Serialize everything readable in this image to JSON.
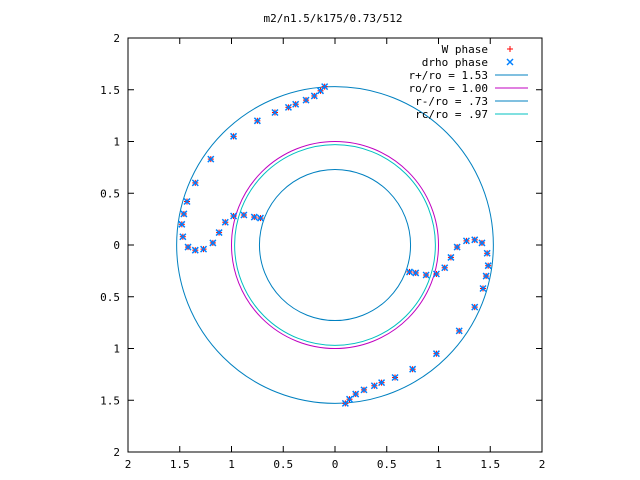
{
  "chart_data": {
    "type": "scatter",
    "title": "m2/n1.5/k175/0.73/512",
    "xlim": [
      -2,
      2
    ],
    "ylim": [
      -2,
      2
    ],
    "x_ticks": [
      {
        "value": -2,
        "label": "2"
      },
      {
        "value": -1.5,
        "label": "1.5"
      },
      {
        "value": -1,
        "label": "1"
      },
      {
        "value": -0.5,
        "label": "0.5"
      },
      {
        "value": 0,
        "label": "0"
      },
      {
        "value": 0.5,
        "label": "0.5"
      },
      {
        "value": 1,
        "label": "1"
      },
      {
        "value": 1.5,
        "label": "1.5"
      },
      {
        "value": 2,
        "label": "2"
      }
    ],
    "y_ticks": [
      {
        "value": 2,
        "label": "2"
      },
      {
        "value": 1.5,
        "label": "1.5"
      },
      {
        "value": 1,
        "label": "1"
      },
      {
        "value": 0.5,
        "label": "0.5"
      },
      {
        "value": 0,
        "label": "0"
      },
      {
        "value": -0.5,
        "label": "0.5"
      },
      {
        "value": -1,
        "label": "1"
      },
      {
        "value": -1.5,
        "label": "1.5"
      },
      {
        "value": -2,
        "label": "2"
      }
    ],
    "grid": false,
    "legend_position": "top-right",
    "series": [
      {
        "name": "W phase",
        "kind": "points",
        "marker": "plus",
        "color": "#ff0000"
      },
      {
        "name": "drho phase",
        "kind": "points",
        "marker": "cross",
        "color": "#0080ff"
      },
      {
        "name": "r+/ro = 1.53",
        "kind": "circle",
        "radius": 1.53,
        "color": "#0080c0"
      },
      {
        "name": "ro/ro = 1.00",
        "kind": "circle",
        "radius": 1.0,
        "color": "#c000c0"
      },
      {
        "name": "r-/ro = .73",
        "kind": "circle",
        "radius": 0.73,
        "color": "#0080c0"
      },
      {
        "name": "rc/ro = .97",
        "kind": "circle",
        "radius": 0.97,
        "color": "#00c0c0"
      }
    ],
    "phase_points_upper": [
      [
        -0.1,
        1.53
      ],
      [
        -0.14,
        1.49
      ],
      [
        -0.2,
        1.44
      ],
      [
        -0.28,
        1.4
      ],
      [
        -0.38,
        1.36
      ],
      [
        -0.45,
        1.33
      ],
      [
        -0.58,
        1.28
      ],
      [
        -0.75,
        1.2
      ],
      [
        -0.98,
        1.05
      ],
      [
        -1.2,
        0.83
      ],
      [
        -1.35,
        0.6
      ],
      [
        -1.43,
        0.42
      ],
      [
        -1.46,
        0.3
      ],
      [
        -1.48,
        0.2
      ],
      [
        -1.47,
        0.08
      ],
      [
        -1.42,
        -0.02
      ],
      [
        -1.35,
        -0.05
      ],
      [
        -1.27,
        -0.04
      ],
      [
        -1.18,
        0.02
      ],
      [
        -1.12,
        0.12
      ],
      [
        -1.06,
        0.22
      ],
      [
        -0.98,
        0.28
      ],
      [
        -0.88,
        0.29
      ],
      [
        -0.78,
        0.27
      ],
      [
        -0.72,
        0.26
      ]
    ]
  }
}
